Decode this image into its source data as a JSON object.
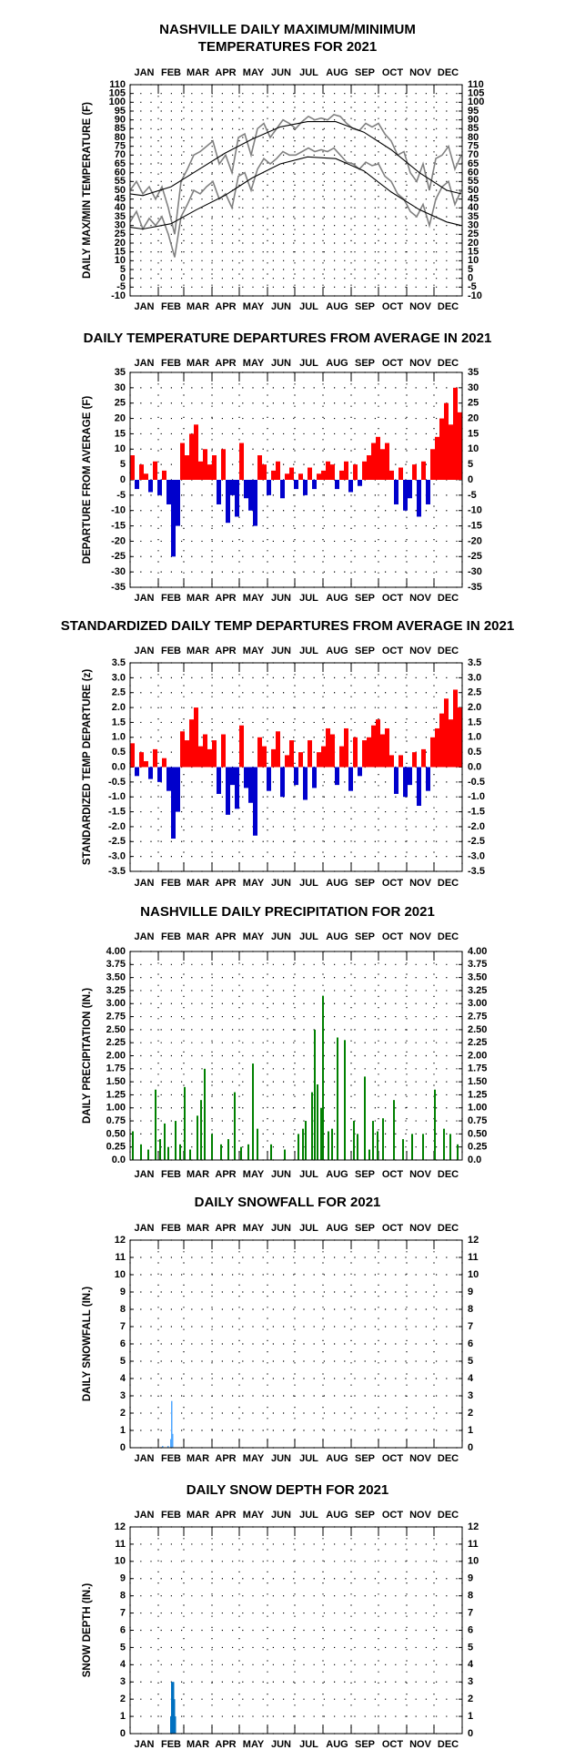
{
  "chart_data": [
    {
      "type": "line",
      "title": [
        "NASHVILLE DAILY MAXIMUM/MINIMUM",
        "TEMPERATURES FOR 2021"
      ],
      "ylabel": "DAILY MAX/MIN TEMPERATURE (F)",
      "categories": [
        "JAN",
        "FEB",
        "MAR",
        "APR",
        "MAY",
        "JUN",
        "JUL",
        "AUG",
        "SEP",
        "OCT",
        "NOV",
        "DEC"
      ],
      "xlim": [
        1,
        366
      ],
      "xticks": [
        1,
        32,
        60,
        91,
        121,
        152,
        182,
        213,
        244,
        274,
        305,
        335,
        366
      ],
      "ylim": [
        -10,
        110
      ],
      "yticks": [
        -10,
        -5,
        0,
        5,
        10,
        15,
        20,
        25,
        30,
        35,
        40,
        45,
        50,
        55,
        60,
        65,
        70,
        75,
        80,
        85,
        90,
        95,
        100,
        105,
        110
      ],
      "grid": true,
      "series": [
        {
          "color": "#808080",
          "x": [
            1,
            8,
            15,
            22,
            29,
            36,
            43,
            50,
            57,
            64,
            71,
            78,
            85,
            92,
            99,
            106,
            113,
            120,
            127,
            134,
            141,
            148,
            155,
            162,
            169,
            176,
            183,
            190,
            197,
            204,
            211,
            218,
            225,
            232,
            239,
            246,
            253,
            260,
            267,
            274,
            281,
            288,
            295,
            302,
            309,
            316,
            323,
            330,
            337,
            344,
            351,
            358,
            365
          ],
          "values": [
            50,
            55,
            48,
            52,
            45,
            52,
            40,
            25,
            55,
            62,
            70,
            72,
            75,
            78,
            65,
            70,
            60,
            80,
            82,
            70,
            85,
            88,
            80,
            85,
            90,
            88,
            85,
            89,
            92,
            90,
            91,
            90,
            93,
            92,
            88,
            85,
            84,
            88,
            86,
            88,
            82,
            78,
            70,
            72,
            60,
            55,
            65,
            50,
            68,
            70,
            75,
            62,
            70
          ]
        },
        {
          "color": "#808080",
          "x": [
            1,
            8,
            15,
            22,
            29,
            36,
            43,
            50,
            57,
            64,
            71,
            78,
            85,
            92,
            99,
            106,
            113,
            120,
            127,
            134,
            141,
            148,
            155,
            162,
            169,
            176,
            183,
            190,
            197,
            204,
            211,
            218,
            225,
            232,
            239,
            246,
            253,
            260,
            267,
            274,
            281,
            288,
            295,
            302,
            309,
            316,
            323,
            330,
            337,
            344,
            351,
            358,
            365
          ],
          "values": [
            32,
            38,
            28,
            34,
            30,
            35,
            25,
            12,
            35,
            42,
            50,
            48,
            52,
            55,
            45,
            48,
            40,
            58,
            60,
            50,
            62,
            68,
            65,
            68,
            72,
            70,
            70,
            72,
            74,
            72,
            73,
            72,
            74,
            70,
            66,
            65,
            62,
            66,
            64,
            65,
            58,
            55,
            48,
            45,
            38,
            35,
            42,
            30,
            45,
            52,
            55,
            42,
            50
          ]
        },
        {
          "color": "#000000",
          "x": [
            1,
            15,
            46,
            74,
            105,
            135,
            166,
            196,
            227,
            258,
            288,
            319,
            349,
            365
          ],
          "values": [
            48,
            47,
            52,
            61,
            71,
            79,
            86,
            89,
            89,
            83,
            73,
            60,
            50,
            48
          ]
        },
        {
          "color": "#000000",
          "x": [
            1,
            15,
            46,
            74,
            105,
            135,
            166,
            196,
            227,
            258,
            288,
            319,
            349,
            365
          ],
          "values": [
            29,
            28,
            31,
            39,
            47,
            57,
            65,
            69,
            68,
            61,
            49,
            39,
            32,
            30
          ]
        }
      ]
    },
    {
      "type": "bar",
      "title": "DAILY TEMPERATURE DEPARTURES FROM AVERAGE IN 2021",
      "ylabel": "DEPARTURE FROM AVERAGE (F)",
      "categories": [
        "JAN",
        "FEB",
        "MAR",
        "APR",
        "MAY",
        "JUN",
        "JUL",
        "AUG",
        "SEP",
        "OCT",
        "NOV",
        "DEC"
      ],
      "xlim": [
        1,
        366
      ],
      "xticks": [
        1,
        32,
        60,
        91,
        121,
        152,
        182,
        213,
        244,
        274,
        305,
        335,
        366
      ],
      "ylim": [
        -35,
        35
      ],
      "yticks": [
        -35,
        -30,
        -25,
        -20,
        -15,
        -10,
        -5,
        0,
        5,
        10,
        15,
        20,
        25,
        30,
        35
      ],
      "grid": true,
      "color": "#ff0000",
      "negative_color": "#0000cc",
      "x": [
        1,
        6,
        11,
        16,
        21,
        26,
        31,
        36,
        41,
        46,
        51,
        56,
        61,
        66,
        71,
        76,
        81,
        86,
        91,
        96,
        101,
        106,
        111,
        116,
        121,
        126,
        131,
        136,
        141,
        146,
        151,
        156,
        161,
        166,
        171,
        176,
        181,
        186,
        191,
        196,
        201,
        206,
        211,
        216,
        221,
        226,
        231,
        236,
        241,
        246,
        251,
        256,
        261,
        266,
        271,
        276,
        281,
        286,
        291,
        296,
        301,
        306,
        311,
        316,
        321,
        326,
        331,
        336,
        341,
        346,
        351,
        356,
        361
      ],
      "values": [
        8,
        -3,
        5,
        2,
        -4,
        6,
        -5,
        3,
        -8,
        -25,
        -15,
        12,
        8,
        15,
        18,
        6,
        10,
        5,
        8,
        -8,
        10,
        -14,
        -5,
        -12,
        12,
        -6,
        -10,
        -15,
        8,
        5,
        -5,
        3,
        6,
        -6,
        2,
        4,
        -3,
        2,
        -5,
        4,
        -3,
        2,
        3,
        6,
        5,
        -3,
        3,
        6,
        -4,
        5,
        -2,
        6,
        8,
        12,
        14,
        10,
        12,
        3,
        -8,
        4,
        -10,
        -6,
        5,
        -12,
        6,
        -8,
        10,
        14,
        20,
        25,
        18,
        30,
        22
      ]
    },
    {
      "type": "bar",
      "title": "STANDARDIZED DAILY TEMP DEPARTURES FROM AVERAGE IN 2021",
      "ylabel": "STANDARDIZED TEMP DEPARTURE (z)",
      "categories": [
        "JAN",
        "FEB",
        "MAR",
        "APR",
        "MAY",
        "JUN",
        "JUL",
        "AUG",
        "SEP",
        "OCT",
        "NOV",
        "DEC"
      ],
      "xlim": [
        1,
        366
      ],
      "xticks": [
        1,
        32,
        60,
        91,
        121,
        152,
        182,
        213,
        244,
        274,
        305,
        335,
        366
      ],
      "ylim": [
        -3.5,
        3.5
      ],
      "yticks": [
        -3.5,
        {
          "value": -3,
          "label": "-3.0"
        },
        -2.5,
        {
          "value": -2,
          "label": "-2.0"
        },
        -1.5,
        {
          "value": -1,
          "label": "-1.0"
        },
        -0.5,
        {
          "value": 0,
          "label": "0.0"
        },
        0.5,
        {
          "value": 1,
          "label": "1.0"
        },
        1.5,
        {
          "value": 2,
          "label": "2.0"
        },
        2.5,
        {
          "value": 3,
          "label": "3.0"
        },
        3.5
      ],
      "grid": true,
      "color": "#ff0000",
      "negative_color": "#0000cc",
      "x": [
        1,
        6,
        11,
        16,
        21,
        26,
        31,
        36,
        41,
        46,
        51,
        56,
        61,
        66,
        71,
        76,
        81,
        86,
        91,
        96,
        101,
        106,
        111,
        116,
        121,
        126,
        131,
        136,
        141,
        146,
        151,
        156,
        161,
        166,
        171,
        176,
        181,
        186,
        191,
        196,
        201,
        206,
        211,
        216,
        221,
        226,
        231,
        236,
        241,
        246,
        251,
        256,
        261,
        266,
        271,
        276,
        281,
        286,
        291,
        296,
        301,
        306,
        311,
        316,
        321,
        326,
        331,
        336,
        341,
        346,
        351,
        356,
        361
      ],
      "values": [
        0.8,
        -0.3,
        0.5,
        0.2,
        -0.4,
        0.6,
        -0.5,
        0.3,
        -0.8,
        -2.4,
        -1.5,
        1.2,
        0.9,
        1.6,
        2.0,
        0.7,
        1.1,
        0.6,
        0.9,
        -0.9,
        1.1,
        -1.6,
        -0.6,
        -1.4,
        1.4,
        -0.7,
        -1.2,
        -2.3,
        1.0,
        0.7,
        -0.8,
        0.6,
        1.2,
        -1.0,
        0.4,
        0.9,
        -0.6,
        0.5,
        -1.1,
        0.9,
        -0.7,
        0.5,
        0.7,
        1.3,
        1.1,
        -0.6,
        0.7,
        1.3,
        -0.8,
        1.0,
        -0.3,
        0.9,
        1.0,
        1.4,
        1.6,
        1.1,
        1.3,
        0.4,
        -0.9,
        0.4,
        -1.0,
        -0.6,
        0.5,
        -1.3,
        0.6,
        -0.8,
        1.0,
        1.3,
        1.8,
        2.3,
        1.6,
        2.6,
        2.0
      ]
    },
    {
      "type": "bar",
      "title": "NASHVILLE DAILY PRECIPITATION FOR 2021",
      "ylabel": "DAILY PRECIPITATION (IN.)",
      "categories": [
        "JAN",
        "FEB",
        "MAR",
        "APR",
        "MAY",
        "JUN",
        "JUL",
        "AUG",
        "SEP",
        "OCT",
        "NOV",
        "DEC"
      ],
      "xlim": [
        1,
        366
      ],
      "xticks": [
        1,
        32,
        60,
        91,
        121,
        152,
        182,
        213,
        244,
        274,
        305,
        335,
        366
      ],
      "ylim": [
        0,
        4
      ],
      "yticks": [
        {
          "value": 0,
          "label": "0.0"
        },
        0.25,
        {
          "value": 0.5,
          "label": "0.50"
        },
        0.75,
        {
          "value": 1,
          "label": "1.00"
        },
        1.25,
        {
          "value": 1.5,
          "label": "1.50"
        },
        1.75,
        {
          "value": 2,
          "label": "2.00"
        },
        2.25,
        {
          "value": 2.5,
          "label": "2.50"
        },
        2.75,
        {
          "value": 3,
          "label": "3.00"
        },
        3.25,
        {
          "value": 3.5,
          "label": "3.50"
        },
        3.75,
        {
          "value": 4,
          "label": "4.00"
        }
      ],
      "grid": true,
      "color": "#008000",
      "x": [
        3,
        12,
        20,
        28,
        33,
        38,
        42,
        50,
        55,
        60,
        66,
        74,
        78,
        82,
        90,
        100,
        108,
        115,
        122,
        130,
        135,
        140,
        155,
        170,
        185,
        190,
        193,
        200,
        203,
        206,
        210,
        212,
        218,
        222,
        228,
        236,
        246,
        250,
        258,
        263,
        267,
        272,
        278,
        290,
        300,
        310,
        322,
        335,
        345,
        352,
        360
      ],
      "values": [
        0.55,
        0.3,
        0.2,
        1.35,
        0.4,
        0.7,
        0.25,
        0.75,
        0.3,
        1.4,
        0.2,
        0.85,
        1.15,
        1.75,
        0.5,
        0.3,
        0.4,
        1.3,
        0.25,
        0.3,
        1.85,
        0.6,
        0.3,
        0.2,
        0.5,
        0.6,
        0.75,
        1.3,
        2.5,
        1.45,
        1.0,
        3.15,
        0.55,
        0.6,
        2.35,
        2.3,
        0.75,
        0.5,
        1.6,
        0.2,
        0.75,
        0.55,
        0.8,
        1.15,
        0.4,
        0.5,
        0.5,
        1.35,
        0.6,
        0.5,
        0.3
      ]
    },
    {
      "type": "bar",
      "title": "DAILY SNOWFALL FOR 2021",
      "ylabel": "DAILY SNOWFALL (IN.)",
      "categories": [
        "JAN",
        "FEB",
        "MAR",
        "APR",
        "MAY",
        "JUN",
        "JUL",
        "AUG",
        "SEP",
        "OCT",
        "NOV",
        "DEC"
      ],
      "xlim": [
        1,
        366
      ],
      "xticks": [
        1,
        32,
        60,
        91,
        121,
        152,
        182,
        213,
        244,
        274,
        305,
        335,
        366
      ],
      "ylim": [
        0,
        12
      ],
      "yticks": [
        0,
        1,
        2,
        3,
        4,
        5,
        6,
        7,
        8,
        9,
        10,
        11,
        12
      ],
      "grid": true,
      "color": "#4da6ff",
      "x": [
        36,
        42,
        45,
        46,
        47
      ],
      "values": [
        0.1,
        0.1,
        0.5,
        2.7,
        0.8
      ]
    },
    {
      "type": "bar",
      "title": "DAILY SNOW DEPTH FOR 2021",
      "ylabel": "SNOW DEPTH (IN.)",
      "categories": [
        "JAN",
        "FEB",
        "MAR",
        "APR",
        "MAY",
        "JUN",
        "JUL",
        "AUG",
        "SEP",
        "OCT",
        "NOV",
        "DEC"
      ],
      "xlim": [
        1,
        366
      ],
      "xticks": [
        1,
        32,
        60,
        91,
        121,
        152,
        182,
        213,
        244,
        274,
        305,
        335,
        366
      ],
      "ylim": [
        0,
        12
      ],
      "yticks": [
        0,
        1,
        2,
        3,
        4,
        5,
        6,
        7,
        8,
        9,
        10,
        11,
        12
      ],
      "grid": true,
      "color": "#0070c0",
      "x": [
        45,
        46,
        47,
        48,
        49,
        50
      ],
      "values": [
        1,
        3,
        3,
        3,
        2,
        1
      ]
    }
  ]
}
